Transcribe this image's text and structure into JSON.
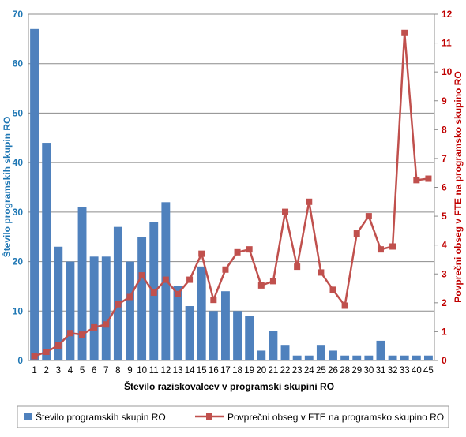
{
  "chart_data": {
    "type": "bar",
    "title": "",
    "xlabel": "Število raziskovalcev v programski skupini RO",
    "ylabel_left": "Število programskih skupin RO",
    "ylabel_right": "Povprečni obseg v FTE na programsko skupino RO",
    "categories": [
      "1",
      "2",
      "3",
      "4",
      "5",
      "6",
      "7",
      "8",
      "9",
      "10",
      "11",
      "12",
      "13",
      "14",
      "15",
      "16",
      "17",
      "18",
      "19",
      "20",
      "21",
      "22",
      "23",
      "24",
      "25",
      "26",
      "28",
      "29",
      "30",
      "31",
      "32",
      "33",
      "40",
      "45"
    ],
    "ylim_left": [
      0,
      70
    ],
    "yticks_left": [
      "0",
      "10",
      "20",
      "30",
      "40",
      "50",
      "60",
      "70"
    ],
    "ylim_right": [
      0,
      12
    ],
    "yticks_right": [
      "0",
      "1",
      "2",
      "3",
      "4",
      "5",
      "6",
      "7",
      "8",
      "9",
      "10",
      "11",
      "12"
    ],
    "grid": true,
    "legend_position": "bottom",
    "series": [
      {
        "name": "Število programskih skupin RO",
        "type": "bar",
        "axis": "left",
        "color": "#4F81BD",
        "values": [
          67,
          44,
          23,
          20,
          31,
          21,
          21,
          27,
          20,
          25,
          28,
          32,
          15,
          11,
          19,
          10,
          14,
          10,
          9,
          2,
          6,
          3,
          1,
          1,
          3,
          2,
          1,
          1,
          1,
          4,
          1,
          1,
          1,
          1
        ]
      },
      {
        "name": "Povprečni obseg v FTE na programsko skupino RO",
        "type": "line",
        "axis": "right",
        "color": "#C0504D",
        "values": [
          0.15,
          0.3,
          0.52,
          0.95,
          0.9,
          1.15,
          1.25,
          1.95,
          2.2,
          2.95,
          2.35,
          2.8,
          2.3,
          2.8,
          3.7,
          2.1,
          3.15,
          3.75,
          3.85,
          2.6,
          2.75,
          5.15,
          3.25,
          5.5,
          3.05,
          2.45,
          1.9,
          4.4,
          5.0,
          3.85,
          3.95,
          11.35,
          6.25,
          6.3
        ]
      }
    ]
  }
}
